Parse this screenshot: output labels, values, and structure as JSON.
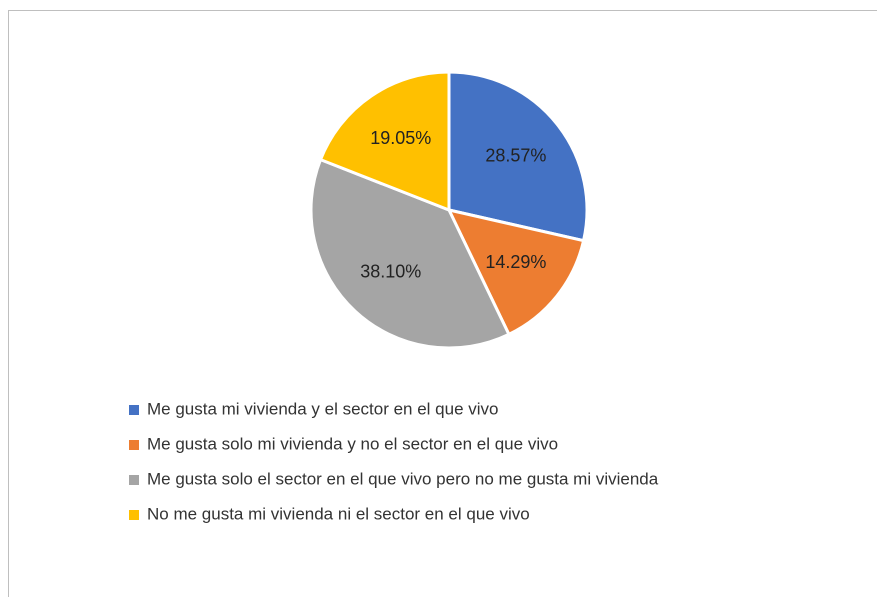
{
  "chart_data": {
    "type": "pie",
    "categories": [
      "Me gusta mi vivienda y el sector en el que vivo",
      "Me gusta solo mi vivienda y no el sector en el que vivo",
      "Me gusta solo el sector en el que vivo pero no me gusta mi vivienda",
      "No me gusta mi vivienda ni el sector en el que vivo"
    ],
    "values": [
      28.57,
      14.29,
      38.1,
      19.05
    ],
    "value_labels": [
      "28.57%",
      "14.29%",
      "38.10%",
      "19.05%"
    ],
    "colors": [
      "#4472c4",
      "#ed7d31",
      "#a5a5a5",
      "#ffc000"
    ],
    "legend": "bottom"
  }
}
